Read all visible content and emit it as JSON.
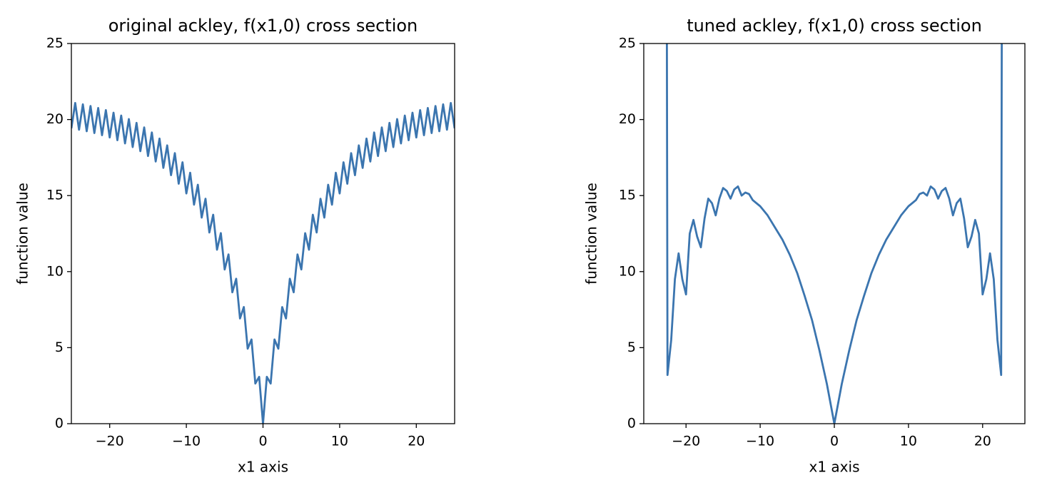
{
  "chart_data": [
    {
      "type": "line",
      "title": "original ackley, f(x1,0) cross section",
      "x_label": "x1 axis",
      "y_label": "function value",
      "color": "#3b75af",
      "x": [
        -25,
        -24.5,
        -24,
        -23.5,
        -23,
        -22.5,
        -22,
        -21.5,
        -21,
        -20.5,
        -20,
        -19.5,
        -19,
        -18.5,
        -18,
        -17.5,
        -17,
        -16.5,
        -16,
        -15.5,
        -15,
        -14.5,
        -14,
        -13.5,
        -13,
        -12.5,
        -12,
        -11.5,
        -11,
        -10.5,
        -10,
        -9.5,
        -9,
        -8.5,
        -8,
        -7.5,
        -7,
        -6.5,
        -6,
        -5.5,
        -5,
        -4.5,
        -4,
        -3.5,
        -3,
        -2.5,
        -2,
        -1.5,
        -1,
        -0.5,
        0,
        0.5,
        1,
        1.5,
        2,
        2.5,
        3,
        3.5,
        4,
        4.5,
        5,
        5.5,
        6,
        6.5,
        7,
        7.5,
        8,
        8.5,
        9,
        9.5,
        10,
        10.5,
        11,
        11.5,
        12,
        12.5,
        13,
        13.5,
        14,
        14.5,
        15,
        15.5,
        16,
        16.5,
        17,
        17.5,
        18,
        18.5,
        19,
        19.5,
        20,
        20.5,
        21,
        21.5,
        22,
        22.5,
        23,
        23.5,
        24,
        24.5,
        25
      ],
      "values": [
        19.42,
        21.09,
        19.33,
        21.0,
        19.23,
        20.89,
        19.11,
        20.76,
        18.97,
        20.62,
        18.82,
        20.45,
        18.64,
        20.26,
        18.43,
        20.03,
        18.19,
        19.78,
        17.92,
        19.48,
        17.6,
        19.15,
        17.24,
        18.75,
        16.82,
        18.3,
        16.34,
        17.79,
        15.78,
        17.19,
        15.14,
        16.5,
        14.4,
        15.71,
        13.55,
        14.79,
        12.57,
        13.74,
        11.44,
        12.53,
        10.14,
        11.13,
        8.64,
        9.53,
        6.92,
        7.67,
        4.93,
        5.54,
        2.64,
        3.08,
        0,
        3.08,
        2.64,
        5.54,
        4.93,
        7.67,
        6.92,
        9.53,
        8.64,
        11.13,
        10.14,
        12.53,
        11.44,
        13.74,
        12.57,
        14.79,
        13.55,
        15.71,
        14.4,
        16.5,
        15.14,
        17.19,
        15.78,
        17.79,
        16.34,
        18.3,
        16.82,
        18.75,
        17.24,
        19.15,
        17.6,
        19.48,
        17.92,
        19.78,
        18.19,
        20.03,
        18.43,
        20.26,
        18.64,
        20.45,
        18.82,
        20.62,
        18.97,
        20.76,
        19.11,
        20.89,
        19.23,
        21.0,
        19.33,
        21.09,
        19.42
      ],
      "xlim": [
        -25,
        25
      ],
      "ylim": [
        0,
        25
      ],
      "xticks": [
        {
          "value": -20,
          "label": "−20"
        },
        {
          "value": -10,
          "label": "−10"
        },
        0,
        10,
        20
      ],
      "yticks": [
        0,
        5,
        10,
        15,
        20,
        25
      ]
    },
    {
      "type": "line",
      "title": "tuned ackley, f(x1,0) cross section",
      "x_label": "x1 axis",
      "y_label": "function value",
      "color": "#3b75af",
      "x": [
        -22.6,
        -22.5,
        -22,
        -21.5,
        -21,
        -20.5,
        -20,
        -19.5,
        -19,
        -18.5,
        -18,
        -17.5,
        -17,
        -16.5,
        -16,
        -15.5,
        -15,
        -14.5,
        -14,
        -13.5,
        -13,
        -12.5,
        -12,
        -11.5,
        -11,
        -10.5,
        -10,
        -9,
        -8,
        -7,
        -6,
        -5,
        -4,
        -3,
        -2,
        -1,
        0,
        1,
        2,
        3,
        4,
        5,
        6,
        7,
        8,
        9,
        10,
        10.5,
        11,
        11.5,
        12,
        12.5,
        13,
        13.5,
        14,
        14.5,
        15,
        15.5,
        16,
        16.5,
        17,
        17.5,
        18,
        18.5,
        19,
        19.5,
        20,
        20.5,
        21,
        21.5,
        22,
        22.5,
        22.6
      ],
      "values": [
        30,
        3.2,
        5.5,
        9.5,
        11.2,
        9.5,
        8.5,
        12.5,
        13.4,
        12.3,
        11.6,
        13.5,
        14.8,
        14.5,
        13.7,
        14.8,
        15.5,
        15.3,
        14.8,
        15.4,
        15.6,
        15.0,
        15.2,
        15.1,
        14.7,
        14.5,
        14.3,
        13.7,
        12.9,
        12.1,
        11.1,
        9.9,
        8.4,
        6.8,
        4.8,
        2.6,
        0,
        2.6,
        4.8,
        6.8,
        8.4,
        9.9,
        11.1,
        12.1,
        12.9,
        13.7,
        14.3,
        14.5,
        14.7,
        15.1,
        15.2,
        15.0,
        15.6,
        15.4,
        14.8,
        15.3,
        15.5,
        14.8,
        13.7,
        14.5,
        14.8,
        13.5,
        11.6,
        12.3,
        13.4,
        12.5,
        8.5,
        9.5,
        11.2,
        9.5,
        5.5,
        3.2,
        30
      ],
      "xlim": [
        -25.7,
        25.7
      ],
      "ylim": [
        0,
        25
      ],
      "xticks": [
        {
          "value": -20,
          "label": "−20"
        },
        {
          "value": -10,
          "label": "−10"
        },
        0,
        10,
        20
      ],
      "yticks": [
        0,
        5,
        10,
        15,
        20,
        25
      ]
    }
  ]
}
